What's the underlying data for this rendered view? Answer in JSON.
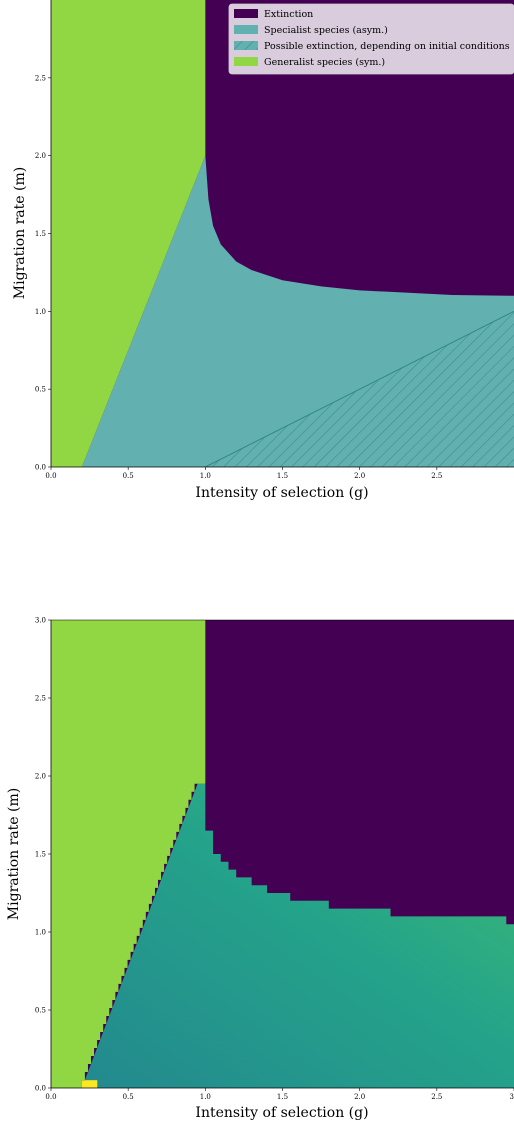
{
  "chart_data": [
    {
      "type": "area",
      "xlabel": "Intensity of selection (g)",
      "ylabel": "Migration rate (m)",
      "xlim": [
        0,
        3
      ],
      "ylim": [
        0,
        3
      ],
      "xticks": [
        "0.0",
        "0.5",
        "1.0",
        "1.5",
        "2.0",
        "2.5"
      ],
      "yticks": [
        "0.0",
        "0.5",
        "1.0",
        "1.5",
        "2.0",
        "2.5"
      ],
      "legend_position": "top-right",
      "legend": [
        {
          "label": "Extinction",
          "color": "#440154",
          "hatch": false
        },
        {
          "label": "Specialist species (asym.)",
          "color": "#62b0b0",
          "hatch": false
        },
        {
          "label": "Possible extinction, depending on initial conditions",
          "color": "#62b0b0",
          "hatch": true
        },
        {
          "label": "Generalist species (sym.)",
          "color": "#90d743",
          "hatch": false
        }
      ],
      "regions": {
        "generalist_boundary": {
          "x": [
            0.2,
            1.0
          ],
          "y": [
            0.0,
            2.0
          ]
        },
        "extinction_boundary": {
          "x": [
            1.0,
            1.02,
            1.05,
            1.1,
            1.2,
            1.3,
            1.5,
            1.75,
            2.0,
            2.3,
            2.6,
            3.0
          ],
          "y": [
            2.0,
            1.72,
            1.55,
            1.43,
            1.32,
            1.265,
            1.2,
            1.16,
            1.135,
            1.12,
            1.105,
            1.1
          ]
        },
        "possible_extinction_boundary": {
          "x": [
            1.0,
            3.0
          ],
          "y": [
            0.0,
            1.0
          ]
        }
      }
    },
    {
      "type": "heatmap",
      "xlabel": "Intensity of selection (g)",
      "ylabel": "Migration rate (m)",
      "xlim": [
        0,
        3
      ],
      "ylim": [
        0,
        3
      ],
      "xticks": [
        "0.0",
        "0.5",
        "1.0",
        "1.5",
        "2.0",
        "2.5",
        "3"
      ],
      "yticks": [
        "0.0",
        "0.5",
        "1.0",
        "1.5",
        "2.0",
        "2.5",
        "3.0"
      ],
      "colors": {
        "extinction": "#440154",
        "generalist": "#90d743",
        "outlier": "#fde725"
      },
      "generalist_boundary": {
        "x": [
          0.2,
          0.95
        ],
        "y": [
          0.0,
          1.95
        ]
      },
      "extinction_boundary_steps": [
        {
          "x0": 1.0,
          "x1": 1.05,
          "y": 1.65
        },
        {
          "x0": 1.05,
          "x1": 1.1,
          "y": 1.5
        },
        {
          "x0": 1.1,
          "x1": 1.15,
          "y": 1.45
        },
        {
          "x0": 1.15,
          "x1": 1.2,
          "y": 1.4
        },
        {
          "x0": 1.2,
          "x1": 1.3,
          "y": 1.35
        },
        {
          "x0": 1.3,
          "x1": 1.4,
          "y": 1.3
        },
        {
          "x0": 1.4,
          "x1": 1.55,
          "y": 1.25
        },
        {
          "x0": 1.55,
          "x1": 1.8,
          "y": 1.2
        },
        {
          "x0": 1.8,
          "x1": 2.2,
          "y": 1.15
        },
        {
          "x0": 2.2,
          "x1": 2.95,
          "y": 1.1
        },
        {
          "x0": 2.95,
          "x1": 3.0,
          "y": 1.05
        }
      ],
      "outlier_cell": {
        "x0": 0.2,
        "x1": 0.3,
        "y0": 0.0,
        "y1": 0.05
      }
    }
  ]
}
